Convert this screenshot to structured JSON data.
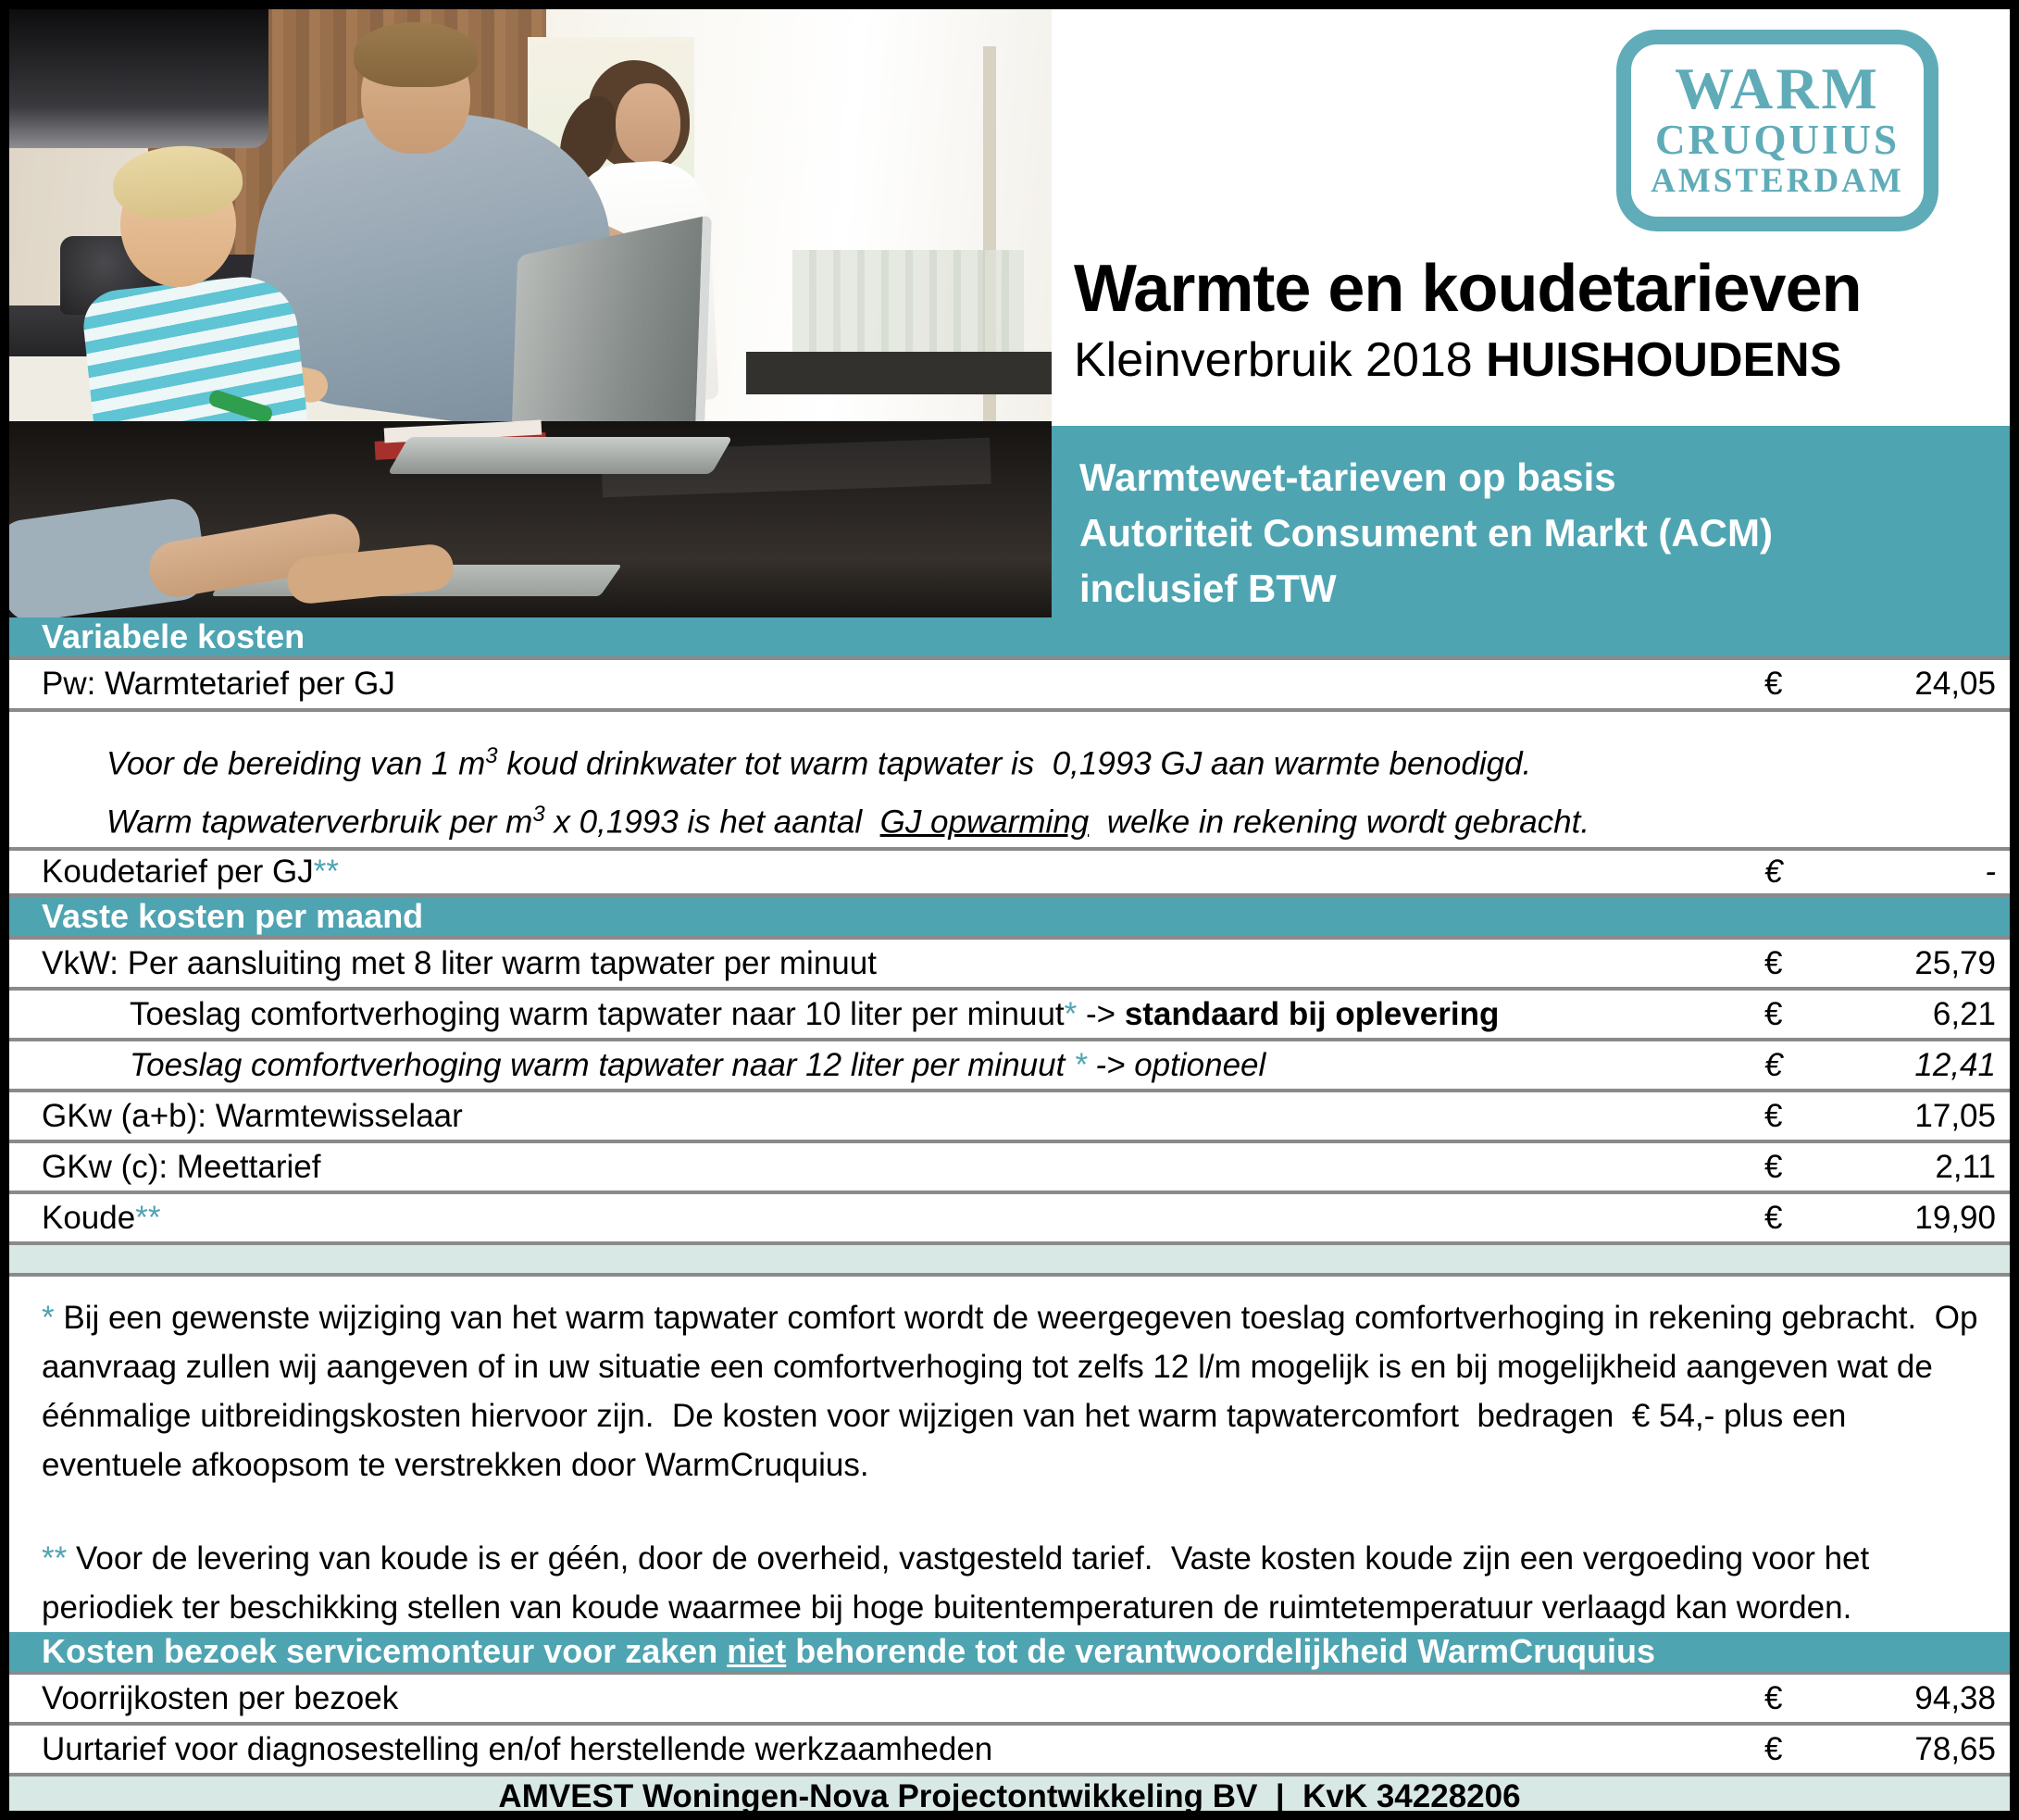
{
  "logo": {
    "line1": "WARM",
    "line2": "CRUQUIUS",
    "line3": "AMSTERDAM"
  },
  "header": {
    "title": "Warmte en koudetarieven",
    "subtitle_prefix": "Kleinverbruik 2018 ",
    "subtitle_bold": "HUISHOUDENS"
  },
  "banner": {
    "line1": "Warmtewet-tarieven op basis",
    "line2": "Autoriteit Consument en Markt (ACM)",
    "line3": "inclusief BTW"
  },
  "currency": "€",
  "variabele": {
    "header": "Variabele kosten",
    "pw_label": "Pw: Warmtetarief per GJ",
    "pw_value": "24,05",
    "note1_pre": "Voor de bereiding van 1 m",
    "note1_sup": "3",
    "note1_post": " koud drinkwater tot warm tapwater is  0,1993 GJ aan warmte benodigd.",
    "note2_pre": "Warm tapwaterverbruik per m",
    "note2_sup": "3",
    "note2_mid": " x 0,1993 is het aantal  ",
    "note2_underline": "GJ opwarming",
    "note2_post": "  welke in rekening wordt gebracht.",
    "koude_label": "Koudetarief per GJ",
    "koude_stars": "**",
    "koude_value": "-"
  },
  "vaste": {
    "header": "Vaste kosten per maand",
    "vkw_label": "VkW: Per aansluiting met 8 liter warm tapwater per minuut",
    "vkw_value": "25,79",
    "t10_label": "Toeslag comfortverhoging warm tapwater naar 10 liter per minuut",
    "t10_star": "*",
    "t10_arrow": " -> ",
    "t10_bold": "standaard bij oplevering",
    "t10_value": "6,21",
    "t12_label": "Toeslag comfortverhoging warm tapwater naar 12 liter per minuut ",
    "t12_star": "*",
    "t12_arrow": " -> ",
    "t12_suffix": "optioneel",
    "t12_value": "12,41",
    "gkwab_label": "GKw (a+b): Warmtewisselaar",
    "gkwab_value": "17,05",
    "gkwc_label": "GKw (c): Meettarief",
    "gkwc_value": "2,11",
    "koude_label": "Koude",
    "koude_stars": "**",
    "koude_value": "19,90"
  },
  "footnotes": {
    "star1": "*",
    "text1": " Bij een gewenste wijziging van het warm tapwater comfort wordt de weergegeven toeslag comfortverhoging in rekening gebracht.  Op aanvraag zullen wij aangeven of in uw situatie een comfortverhoging tot zelfs 12 l/m mogelijk is en bij mogelijkheid aangeven wat de éénmalige uitbreidingskosten hiervoor zijn.  De kosten voor wijzigen van het warm tapwatercomfort  bedragen  € 54,- plus een eventuele afkoopsom te verstrekken door WarmCruquius.",
    "star2": "**",
    "text2": " Voor de levering van koude is er géén, door de overheid, vastgesteld tarief.  Vaste kosten koude zijn een vergoeding voor het periodiek ter beschikking stellen van koude waarmee bij hoge buitentemperaturen de ruimtetemperatuur verlaagd kan worden."
  },
  "service": {
    "header_pre": "Kosten bezoek servicemonteur voor zaken ",
    "header_underline": "niet",
    "header_post": " behorende tot de verantwoordelijkheid WarmCruquius",
    "row1_label": "Voorrijkosten per bezoek",
    "row1_value": "94,38",
    "row2_label": "Uurtarief voor diagnosestelling en/of herstellende werkzaamheden",
    "row2_value": "78,65"
  },
  "footer": {
    "text": "AMVEST Woningen-Nova Projectontwikkeling BV  |  KvK 34228206"
  },
  "colors": {
    "teal": "#4FA4B2",
    "pale_teal": "#D8E8E5",
    "row_border": "#8A8A8A",
    "logo_teal": "#57A8B5"
  }
}
